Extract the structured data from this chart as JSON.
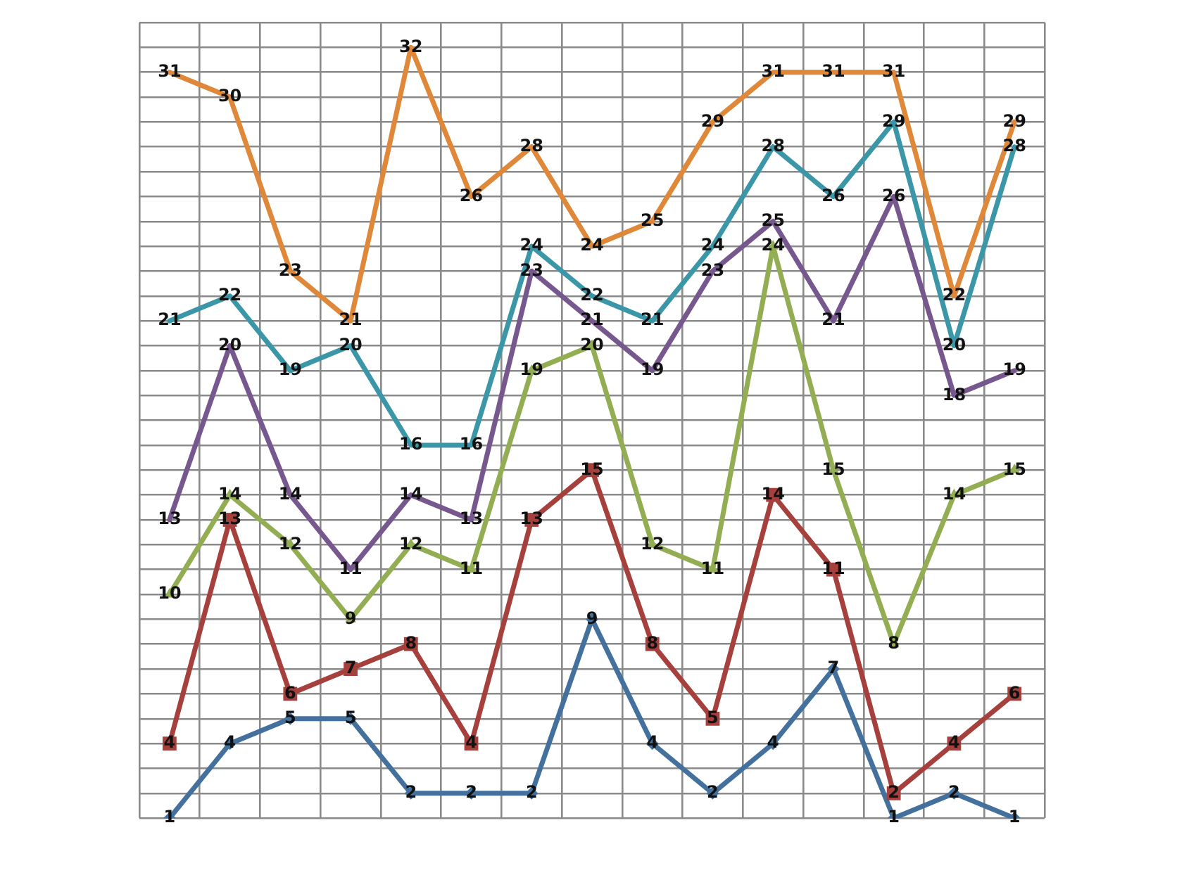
{
  "chart_data": {
    "type": "line",
    "categories": [
      null,
      null,
      null,
      null,
      null,
      null,
      null,
      null,
      null,
      null,
      null,
      null,
      null,
      null,
      null
    ],
    "ylim": [
      1,
      33
    ],
    "yticks": [
      {
        "value": 1,
        "label": null
      },
      {
        "value": 2,
        "label": null
      },
      {
        "value": 3,
        "label": null
      },
      {
        "value": 4,
        "label": null
      },
      {
        "value": 5,
        "label": null
      },
      {
        "value": 6,
        "label": null
      },
      {
        "value": 7,
        "label": null
      },
      {
        "value": 8,
        "label": null
      },
      {
        "value": 9,
        "label": null
      },
      {
        "value": 10,
        "label": null
      },
      {
        "value": 11,
        "label": null
      },
      {
        "value": 12,
        "label": null
      },
      {
        "value": 13,
        "label": null
      },
      {
        "value": 14,
        "label": null
      },
      {
        "value": 15,
        "label": null
      },
      {
        "value": 16,
        "label": null
      },
      {
        "value": 17,
        "label": null
      },
      {
        "value": 18,
        "label": null
      },
      {
        "value": 19,
        "label": null
      },
      {
        "value": 20,
        "label": null
      },
      {
        "value": 21,
        "label": null
      },
      {
        "value": 22,
        "label": null
      },
      {
        "value": 23,
        "label": null
      },
      {
        "value": 24,
        "label": null
      },
      {
        "value": 25,
        "label": null
      },
      {
        "value": 26,
        "label": null
      },
      {
        "value": 27,
        "label": null
      },
      {
        "value": 28,
        "label": null
      },
      {
        "value": 29,
        "label": null
      },
      {
        "value": 30,
        "label": null
      },
      {
        "value": 31,
        "label": null
      },
      {
        "value": 32,
        "label": null
      },
      {
        "value": 33,
        "label": null
      }
    ],
    "grid": true,
    "data_labels": true,
    "line_style": "solid",
    "series": [
      {
        "color": "#e0883a",
        "values": [
          31,
          30,
          23,
          21,
          32,
          26,
          28,
          24,
          25,
          29,
          31,
          31,
          31,
          22,
          29
        ]
      },
      {
        "color": "#3b97a8",
        "values": [
          21,
          22,
          19,
          20,
          16,
          16,
          24,
          22,
          21,
          24,
          28,
          26,
          29,
          20,
          28
        ]
      },
      {
        "color": "#76588f",
        "values": [
          13,
          20,
          14,
          11,
          14,
          13,
          23,
          21,
          19,
          23,
          25,
          21,
          26,
          18,
          19
        ]
      },
      {
        "color": "#93ae52",
        "marker": "triangle",
        "values": [
          10,
          14,
          12,
          9,
          12,
          11,
          19,
          20,
          12,
          11,
          24,
          15,
          8,
          14,
          15
        ]
      },
      {
        "color": "#a6403d",
        "marker": "square",
        "values": [
          4,
          13,
          6,
          7,
          8,
          4,
          13,
          15,
          8,
          5,
          14,
          11,
          2,
          4,
          6
        ]
      },
      {
        "color": "#44709d",
        "marker": "diamond",
        "values": [
          1,
          4,
          5,
          5,
          2,
          2,
          2,
          9,
          4,
          2,
          4,
          7,
          1,
          2,
          1
        ]
      }
    ]
  }
}
